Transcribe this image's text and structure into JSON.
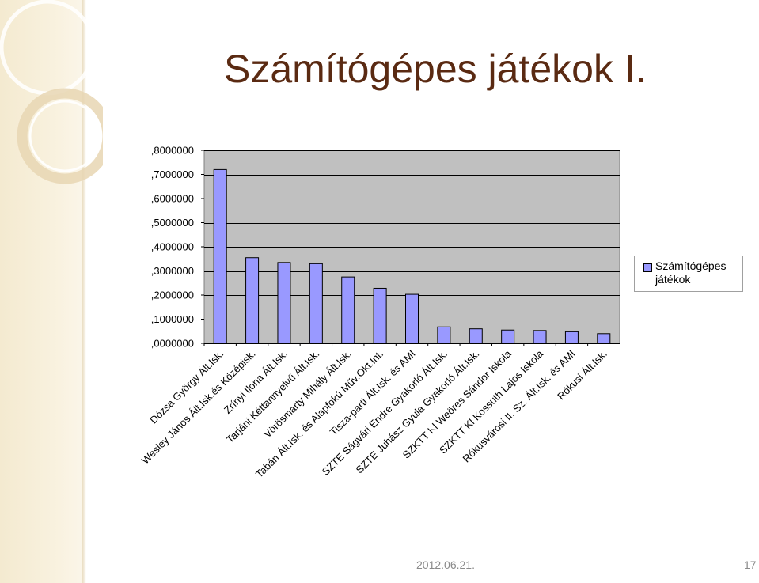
{
  "slide": {
    "title": "Számítógépes játékok I.",
    "date": "2012.06.21.",
    "page_number": "17"
  },
  "colors": {
    "bar_fill": "#9999ff",
    "plot_bg": "#c0c0c0",
    "title": "#5a2a12"
  },
  "chart_data": {
    "type": "bar",
    "title": "",
    "xlabel": "",
    "ylabel": "",
    "ylim": [
      0,
      0.8
    ],
    "yticks": [
      {
        "value": 0,
        "label": ",0000000"
      },
      {
        "value": 0.1,
        "label": ",1000000"
      },
      {
        "value": 0.2,
        "label": ",2000000"
      },
      {
        "value": 0.3,
        "label": ",3000000"
      },
      {
        "value": 0.4,
        "label": ",4000000"
      },
      {
        "value": 0.5,
        "label": ",5000000"
      },
      {
        "value": 0.6,
        "label": ",6000000"
      },
      {
        "value": 0.7,
        "label": ",7000000"
      },
      {
        "value": 0.8,
        "label": ",8000000"
      }
    ],
    "grid": true,
    "legend_position": "right",
    "categories": [
      "Dózsa György Ált.Isk.",
      "Wesley János Ált.Isk.és Középisk.",
      "Zrínyi Ilona Ált.Isk.",
      "Tarjáni Kéttannyelvű Ált.Isk.",
      "Vörösmarty Mihály Ált.Isk.",
      "Tabán Ált.Isk. és Alapfokú Műv.Okt.Int.",
      "Tisza-parti Ált.Isk. és AMI",
      "SZTE Ságvári Endre Gyakorló Ált.Isk.",
      "SZTE Juhász Gyula Gyakorló Ált.Isk.",
      "SZKTT Kl Weöres Sándor Iskola",
      "SZKTT Kl Kossuth Lajos Iskola",
      "Rókusvárosi II. Sz. Ált.Isk. és AMI",
      "Rókusi Ált.Isk."
    ],
    "series": [
      {
        "name": "Számítógépes játékok",
        "values": [
          0.72,
          0.355,
          0.335,
          0.33,
          0.275,
          0.228,
          0.203,
          0.068,
          0.06,
          0.055,
          0.053,
          0.048,
          0.04
        ]
      }
    ]
  }
}
